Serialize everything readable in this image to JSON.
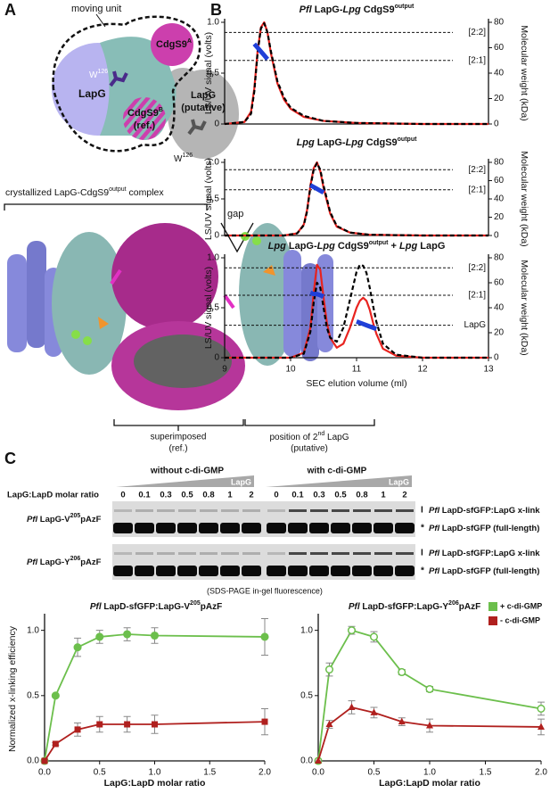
{
  "panel_a": {
    "label": "A",
    "moving_unit": "moving unit",
    "lapg": "LapG",
    "w126_a": [
      "W",
      "126"
    ],
    "cdgs9a": [
      "CdgS9",
      "A"
    ],
    "cdgs9b": [
      "CdgS9",
      "B",
      "(ref.)"
    ],
    "lapg_putative": [
      "LapG",
      "(putative)"
    ],
    "w126_b": [
      "W",
      "126"
    ],
    "complex": [
      "crystallized LapG-CdgS9",
      "output",
      " complex"
    ],
    "gap": "gap",
    "superimposed": [
      "superimposed",
      "(ref.)"
    ],
    "position": [
      "position of 2",
      "nd",
      " LapG",
      "(putative)"
    ]
  },
  "panel_b": {
    "label": "B"
  },
  "panel_c": {
    "label": "C",
    "without": "without c-di-GMP",
    "with": "with c-di-GMP",
    "wedge_left": "LapG",
    "wedge_right": "LapG",
    "ratio_label": "LapG:LapD molar ratio",
    "lanes_without": [
      "0",
      "0.1",
      "0.3",
      "0.5",
      "0.8",
      "1",
      "2"
    ],
    "lanes_with": [
      "0",
      "0.1",
      "0.3",
      "0.5",
      "0.8",
      "1",
      "2"
    ],
    "gels": [
      {
        "row": [
          "Pfl",
          " LapG-V",
          "205",
          "pAzF"
        ],
        "xlink_mark": "I",
        "xlink": [
          "Pfl",
          " LapD-sfGFP:LapG x-link"
        ],
        "full_mark": "*",
        "full": [
          "Pfl",
          " LapD-sfGFP (full-length)"
        ]
      },
      {
        "row": [
          "Pfl",
          " LapG-Y",
          "206",
          "pAzF"
        ],
        "xlink_mark": "I",
        "xlink": [
          "Pfl",
          " LapD-sfGFP:LapG x-link"
        ],
        "full_mark": "*",
        "full": [
          "Pfl",
          " LapD-sfGFP (full-length)"
        ]
      }
    ],
    "caption": "(SDS-PAGE in-gel fluorescence)"
  },
  "chart_data": [
    {
      "type": "line",
      "title": [
        "Pfl",
        " LapG-",
        "Lpg",
        " CdgS9",
        "output"
      ],
      "ylabel": "LS/UV signal (volts)",
      "y2label": "Molecular weight (kDa)",
      "x": [
        9,
        9.3,
        9.4,
        9.45,
        9.5,
        9.55,
        9.6,
        9.65,
        9.7,
        9.8,
        9.9,
        10,
        10.2,
        10.5,
        11,
        12,
        13
      ],
      "xlim": [
        9,
        13
      ],
      "ylim": [
        0,
        1
      ],
      "yticks": [
        0,
        0.5,
        {
          "value": 1,
          "label": "1.0"
        }
      ],
      "y2lim": [
        0,
        80
      ],
      "y2ticks": [
        0,
        20,
        40,
        60,
        80
      ],
      "annotations": [
        {
          "label": "[2:2]",
          "y2": 72
        },
        {
          "label": "[2:1]",
          "y2": 50
        }
      ],
      "series": [
        {
          "color": "#e8231f",
          "values": [
            0,
            0.02,
            0.12,
            0.35,
            0.72,
            0.95,
            1.0,
            0.9,
            0.7,
            0.4,
            0.24,
            0.15,
            0.07,
            0.03,
            0.01,
            0,
            0
          ]
        },
        {
          "color": "#000000",
          "style": "dashed",
          "values": [
            0,
            0.02,
            0.1,
            0.32,
            0.7,
            0.94,
            0.99,
            0.9,
            0.72,
            0.42,
            0.26,
            0.16,
            0.08,
            0.03,
            0.01,
            0,
            0
          ]
        },
        {
          "color": "#2040d8",
          "axis": "y2",
          "values": [
            null,
            null,
            null,
            63,
            60,
            57,
            54,
            51,
            null,
            null,
            null,
            null,
            null,
            null,
            null,
            null,
            null
          ]
        }
      ]
    },
    {
      "type": "line",
      "title": [
        "Lpg",
        " LapG-",
        "Lpg",
        " CdgS9",
        "output"
      ],
      "ylabel": "LS/UV signal (volts)",
      "y2label": "Molecular weight (kDa)",
      "x": [
        9,
        9.9,
        10.1,
        10.2,
        10.25,
        10.3,
        10.35,
        10.4,
        10.45,
        10.5,
        10.6,
        10.7,
        10.9,
        11.2,
        12,
        13
      ],
      "xlim": [
        9,
        13
      ],
      "ylim": [
        0,
        1
      ],
      "yticks": [
        0,
        0.5,
        {
          "value": 1,
          "label": "1.0"
        }
      ],
      "y2lim": [
        0,
        80
      ],
      "y2ticks": [
        0,
        20,
        40,
        60,
        80
      ],
      "annotations": [
        {
          "label": "[2:2]",
          "y2": 72
        },
        {
          "label": "[2:1]",
          "y2": 50
        }
      ],
      "series": [
        {
          "color": "#e8231f",
          "values": [
            0,
            0,
            0.03,
            0.15,
            0.35,
            0.68,
            0.92,
            1.0,
            0.88,
            0.65,
            0.3,
            0.12,
            0.04,
            0.01,
            0,
            0
          ]
        },
        {
          "color": "#000000",
          "style": "dashed",
          "values": [
            0,
            0,
            0.03,
            0.14,
            0.33,
            0.66,
            0.9,
            0.99,
            0.9,
            0.68,
            0.32,
            0.13,
            0.04,
            0.01,
            0,
            0
          ]
        },
        {
          "color": "#2040d8",
          "axis": "y2",
          "values": [
            null,
            null,
            null,
            null,
            null,
            55,
            53,
            51,
            49,
            47,
            null,
            null,
            null,
            null,
            null,
            null
          ]
        }
      ]
    },
    {
      "type": "line",
      "title": [
        "Lpg",
        " LapG-",
        "Lpg",
        " CdgS9",
        "output",
        " + ",
        "Lpg",
        " LapG"
      ],
      "ylabel": "LS/UV signal (volts)",
      "y2label": "Molecular weight (kDa)",
      "xlabel": "SEC elution volume (ml)",
      "x": [
        9,
        10,
        10.2,
        10.3,
        10.35,
        10.4,
        10.45,
        10.5,
        10.55,
        10.6,
        10.7,
        10.8,
        10.9,
        11,
        11.05,
        11.1,
        11.15,
        11.2,
        11.25,
        11.3,
        11.4,
        11.6,
        12,
        13
      ],
      "xlim": [
        9,
        13
      ],
      "xticks": [
        9,
        10,
        11,
        12,
        13
      ],
      "ylim": [
        0,
        1
      ],
      "yticks": [
        0,
        0.5,
        {
          "value": 1,
          "label": "1.0"
        }
      ],
      "y2lim": [
        0,
        80
      ],
      "y2ticks": [
        0,
        20,
        40,
        60,
        80
      ],
      "annotations": [
        {
          "label": "[2:2]",
          "y2": 72
        },
        {
          "label": "[2:1]",
          "y2": 50
        },
        {
          "label": "LapG",
          "y2": 26
        }
      ],
      "series": [
        {
          "color": "#e8231f",
          "values": [
            0,
            0,
            0.05,
            0.3,
            0.65,
            0.93,
            0.88,
            0.6,
            0.35,
            0.2,
            0.1,
            0.14,
            0.3,
            0.5,
            0.57,
            0.6,
            0.57,
            0.48,
            0.35,
            0.24,
            0.09,
            0.02,
            0,
            0
          ]
        },
        {
          "color": "#000000",
          "style": "dashed",
          "values": [
            0,
            0,
            0.04,
            0.26,
            0.55,
            0.75,
            0.7,
            0.5,
            0.3,
            0.2,
            0.16,
            0.3,
            0.58,
            0.86,
            0.93,
            0.92,
            0.85,
            0.7,
            0.52,
            0.36,
            0.14,
            0.03,
            0,
            0
          ]
        },
        {
          "color": "#2040d8",
          "axis": "y2",
          "values": [
            null,
            null,
            null,
            52,
            51,
            51,
            50,
            49,
            null,
            null,
            null,
            null,
            null,
            29,
            28,
            27,
            26,
            25,
            24,
            23,
            null,
            null,
            null,
            null
          ]
        }
      ]
    },
    {
      "type": "line",
      "title": [
        "Pfl",
        " LapD-sfGFP:LapG-V",
        "205",
        "pAzF"
      ],
      "ylabel": "Normalized x-linking efficiency",
      "xlabel": "LapG:LapD molar ratio",
      "x": [
        0,
        0.1,
        0.3,
        0.5,
        0.75,
        1,
        2
      ],
      "xlim": [
        0,
        2
      ],
      "xticks": [
        {
          "value": 0,
          "label": "0.0"
        },
        0.5,
        {
          "value": 1,
          "label": "1.0"
        },
        1.5,
        {
          "value": 2,
          "label": "2.0"
        }
      ],
      "ylim": [
        0,
        1.1
      ],
      "yticks": [
        {
          "value": 0,
          "label": "0.0"
        },
        0.5,
        {
          "value": 1,
          "label": "1.0"
        }
      ],
      "series": [
        {
          "color": "#6cbf4c",
          "marker": "circle",
          "values": [
            0,
            0.5,
            0.87,
            0.95,
            0.97,
            0.96,
            0.95
          ],
          "errors": [
            0,
            0.01,
            0.07,
            0.05,
            0.05,
            0.06,
            0.14
          ]
        },
        {
          "color": "#b0201e",
          "marker": "square",
          "values": [
            0,
            0.13,
            0.24,
            0.28,
            0.28,
            0.28,
            0.3
          ],
          "errors": [
            0,
            0.01,
            0.05,
            0.06,
            0.06,
            0.07,
            0.1
          ]
        }
      ]
    },
    {
      "type": "line",
      "title": [
        "Pfl",
        " LapD-sfGFP:LapG-Y",
        "206",
        "pAzF"
      ],
      "xlabel": "LapG:LapD molar ratio",
      "legend": "top-right",
      "x": [
        0,
        0.1,
        0.3,
        0.5,
        0.75,
        1,
        2
      ],
      "xlim": [
        0,
        2
      ],
      "xticks": [
        {
          "value": 0,
          "label": "0.0"
        },
        0.5,
        {
          "value": 1,
          "label": "1.0"
        },
        1.5,
        {
          "value": 2,
          "label": "2.0"
        }
      ],
      "ylim": [
        0,
        1.1
      ],
      "yticks": [
        {
          "value": 0,
          "label": "0.0"
        },
        0.5,
        {
          "value": 1,
          "label": "1.0"
        }
      ],
      "series": [
        {
          "name": "+ c-di-GMP",
          "color": "#6cbf4c",
          "marker": "circle-open",
          "values": [
            0,
            0.7,
            1.0,
            0.95,
            0.68,
            0.55,
            0.4
          ],
          "errors": [
            0,
            0.05,
            0.03,
            0.04,
            0.02,
            0.02,
            0.05
          ]
        },
        {
          "name": "- c-di-GMP",
          "color": "#b0201e",
          "marker": "triangle",
          "values": [
            0,
            0.28,
            0.41,
            0.37,
            0.3,
            0.27,
            0.26
          ],
          "errors": [
            0,
            0.03,
            0.05,
            0.04,
            0.03,
            0.05,
            0.06
          ]
        }
      ]
    }
  ]
}
